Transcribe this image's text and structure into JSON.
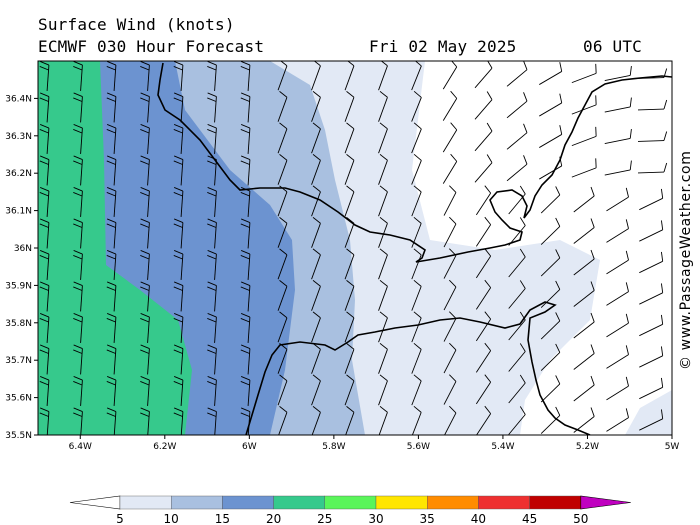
{
  "header": {
    "title": "Surface Wind (knots)",
    "model_line": "ECMWF 030 Hour Forecast",
    "date": "Fri 02 May 2025",
    "time": "06 UTC"
  },
  "map": {
    "lat_ticks": [
      "36.4N",
      "36.3N",
      "36.2N",
      "36.1N",
      "36N",
      "35.9N",
      "35.8N",
      "35.7N",
      "35.6N",
      "35.5N"
    ],
    "lon_ticks": [
      "6.4W",
      "6.2W",
      "6W",
      "5.8W",
      "5.6W",
      "5.4W",
      "5.2W",
      "5W"
    ],
    "lat_range": [
      35.5,
      36.5
    ],
    "lon_range": [
      -6.5,
      -5.0
    ]
  },
  "colorbar": {
    "labels": [
      "5",
      "10",
      "15",
      "20",
      "25",
      "30",
      "35",
      "40",
      "45",
      "50"
    ],
    "colors": [
      "#ffffff",
      "#e2e9f5",
      "#a9c0e0",
      "#6c93d0",
      "#36c98c",
      "#5af55a",
      "#ffe600",
      "#ff8c00",
      "#ee3030",
      "#c00000",
      "#c000c0"
    ]
  },
  "credit": "© www.PassageWeather.com"
}
